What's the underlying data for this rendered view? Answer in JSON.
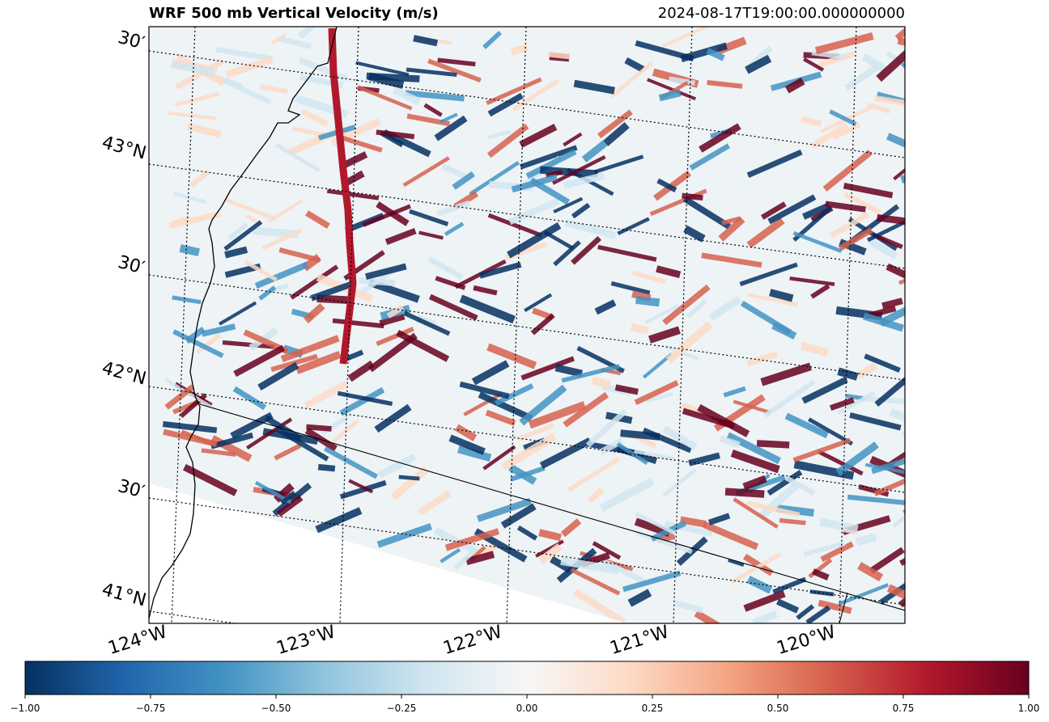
{
  "title": {
    "left": "WRF 500 mb Vertical Velocity (m/s)",
    "right": "2024-08-17T19:00:00.000000000"
  },
  "map": {
    "lat_labels": [
      "30′",
      "43°N",
      "30′",
      "42°N",
      "30′",
      "41°N"
    ],
    "lon_labels": [
      "124°W",
      "123°W",
      "122°W",
      "121°W",
      "120°W"
    ]
  },
  "colorbar": {
    "colormap": "RdBu_r",
    "min": -1.0,
    "max": 1.0,
    "colors": [
      "#053061",
      "#2166ac",
      "#4393c3",
      "#92c5de",
      "#d1e5f0",
      "#f7f7f7",
      "#fddbc7",
      "#f4a582",
      "#d6604d",
      "#b2182b",
      "#67001f"
    ],
    "tick_labels": [
      "−1.00",
      "−0.75",
      "−0.50",
      "−0.25",
      "0.00",
      "0.25",
      "0.50",
      "0.75",
      "1.00"
    ]
  }
}
